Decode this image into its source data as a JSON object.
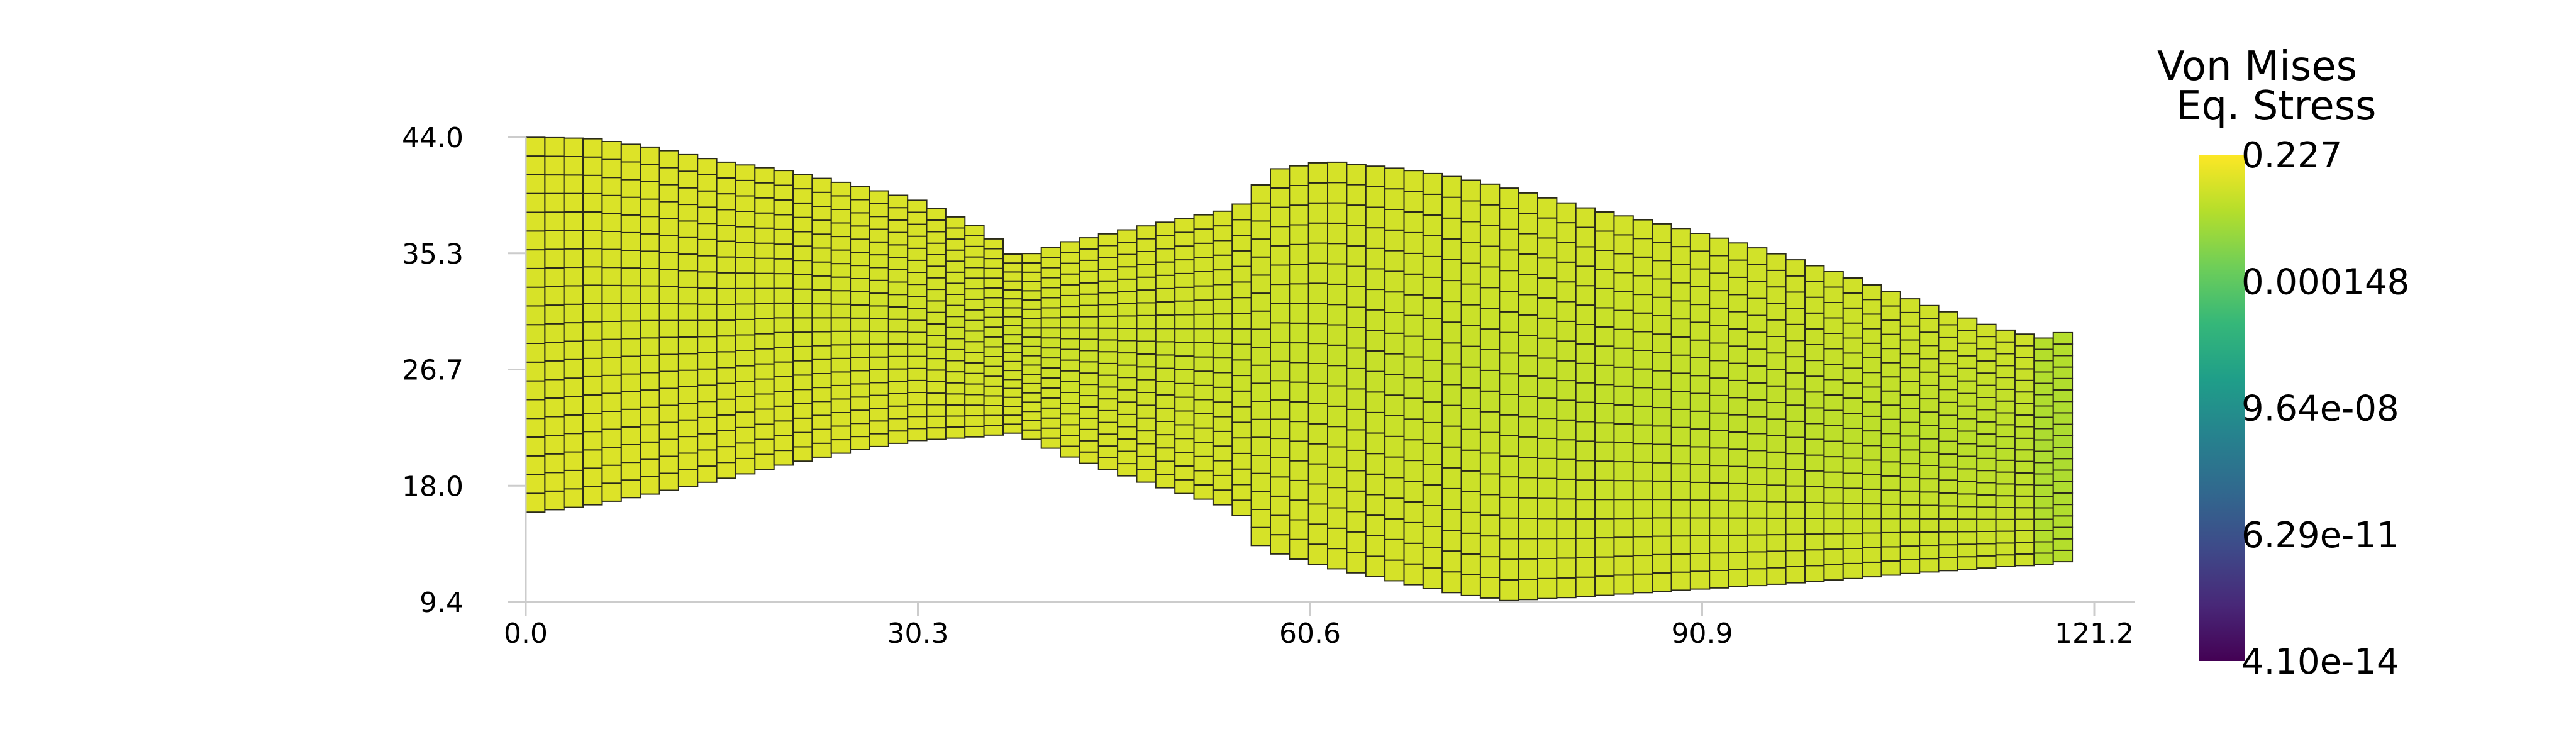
{
  "chart_data": {
    "type": "heatmap",
    "subtype": "finite-element mesh (deformed), colored by scalar field",
    "x_axis": {
      "range": [
        0.0,
        121.2
      ],
      "ticks": [
        "0.0",
        "30.3",
        "60.6",
        "90.9",
        "121.2"
      ]
    },
    "y_axis": {
      "range": [
        9.4,
        44.0
      ],
      "ticks": [
        "9.4",
        "18.0",
        "26.7",
        "35.3",
        "44.0"
      ]
    },
    "grid": false,
    "colorbar": {
      "title_lines": [
        "Von Mises",
        "Eq. Stress"
      ],
      "scale": "log",
      "colormap": "viridis",
      "placement": "right",
      "labels": [
        "0.227",
        "0.000148",
        "9.64e-08",
        "6.29e-11",
        "4.10e-14"
      ],
      "range": [
        4.1e-14,
        0.227
      ]
    },
    "mesh": {
      "cols": 81,
      "rows": 20,
      "x_start": 0.0,
      "x_end": 119.5,
      "top_edge_y": [
        [
          0,
          44.0
        ],
        [
          5,
          43.9
        ],
        [
          10,
          43.2
        ],
        [
          15,
          42.2
        ],
        [
          20,
          41.5
        ],
        [
          25,
          40.5
        ],
        [
          30,
          39.4
        ],
        [
          35,
          37.3
        ],
        [
          38,
          35.0
        ],
        [
          42,
          36.2
        ],
        [
          48,
          37.4
        ],
        [
          55,
          38.7
        ],
        [
          58,
          41.6
        ],
        [
          62,
          42.2
        ],
        [
          68,
          41.6
        ],
        [
          72,
          41.0
        ],
        [
          76,
          40.2
        ],
        [
          82,
          38.7
        ],
        [
          88,
          37.5
        ],
        [
          95,
          35.8
        ],
        [
          102,
          33.7
        ],
        [
          108,
          31.6
        ],
        [
          114,
          29.7
        ],
        [
          117.5,
          29.0
        ],
        [
          119.5,
          29.7
        ]
      ],
      "bottom_edge_y": [
        [
          0,
          16.0
        ],
        [
          5,
          16.6
        ],
        [
          10,
          17.5
        ],
        [
          15,
          18.5
        ],
        [
          20,
          19.6
        ],
        [
          25,
          20.6
        ],
        [
          30,
          21.4
        ],
        [
          35,
          21.7
        ],
        [
          38,
          22.0
        ],
        [
          42,
          20.2
        ],
        [
          48,
          18.3
        ],
        [
          55,
          16.3
        ],
        [
          57,
          13.3
        ],
        [
          62,
          12.0
        ],
        [
          68,
          10.8
        ],
        [
          72,
          10.0
        ],
        [
          76,
          9.5
        ],
        [
          82,
          9.8
        ],
        [
          88,
          10.2
        ],
        [
          95,
          10.6
        ],
        [
          102,
          11.1
        ],
        [
          108,
          11.6
        ],
        [
          114,
          12.0
        ],
        [
          117.5,
          12.2
        ],
        [
          119.5,
          12.5
        ]
      ],
      "log10_value_range": [
        -2.7,
        -1.25
      ]
    }
  }
}
